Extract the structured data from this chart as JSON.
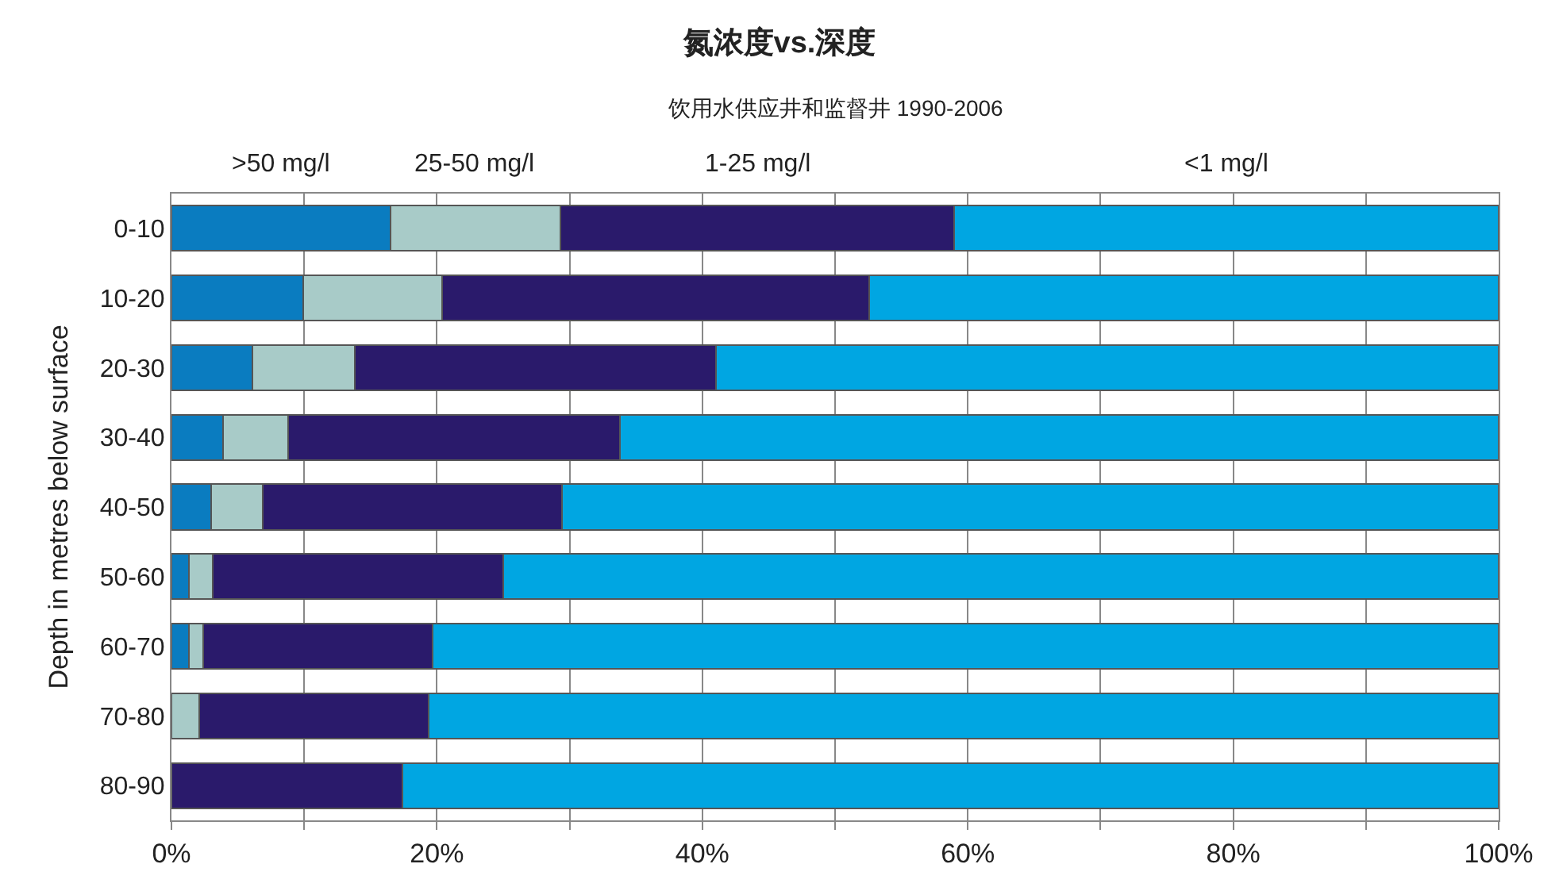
{
  "chart_data": {
    "type": "bar",
    "orientation": "horizontal",
    "stacked": true,
    "title": "氮浓度vs.深度",
    "subtitle": "饮用水供应井和监督井 1990-2006",
    "ylabel": "Depth in metres below surface",
    "categories": [
      "0-10",
      "10-20",
      "20-30",
      "30-40",
      "40-50",
      "50-60",
      "60-70",
      "70-80",
      "80-90"
    ],
    "series": [
      {
        "name": ">50 mg/l",
        "color": "#0a7cc0",
        "values": [
          16.5,
          9.9,
          6.1,
          3.9,
          3.0,
          1.3,
          1.3,
          0,
          0
        ]
      },
      {
        "name": "25-50 mg/l",
        "color": "#a8cbc8",
        "values": [
          12.8,
          10.5,
          7.7,
          4.9,
          3.9,
          1.8,
          1.1,
          2.1,
          0
        ]
      },
      {
        "name": "1-25 mg/l",
        "color": "#2a1a6b",
        "values": [
          29.7,
          32.2,
          27.2,
          25.0,
          22.5,
          21.9,
          17.3,
          17.3,
          17.4
        ]
      },
      {
        "name": "<1 mg/l",
        "color": "#00a6e2",
        "values": [
          41.0,
          47.4,
          59.0,
          66.2,
          70.6,
          75.0,
          80.3,
          80.6,
          82.6
        ]
      }
    ],
    "xlim": [
      0,
      100
    ],
    "xticks": [
      {
        "value": 0,
        "label": "0%"
      },
      {
        "value": 10,
        "label": null
      },
      {
        "value": 20,
        "label": "20%"
      },
      {
        "value": 30,
        "label": null
      },
      {
        "value": 40,
        "label": "40%"
      },
      {
        "value": 50,
        "label": null
      },
      {
        "value": 60,
        "label": "60%"
      },
      {
        "value": 70,
        "label": null
      },
      {
        "value": 80,
        "label": "80%"
      },
      {
        "value": 90,
        "label": null
      },
      {
        "value": 100,
        "label": "100%"
      }
    ],
    "grid": "x",
    "legend": "top"
  }
}
